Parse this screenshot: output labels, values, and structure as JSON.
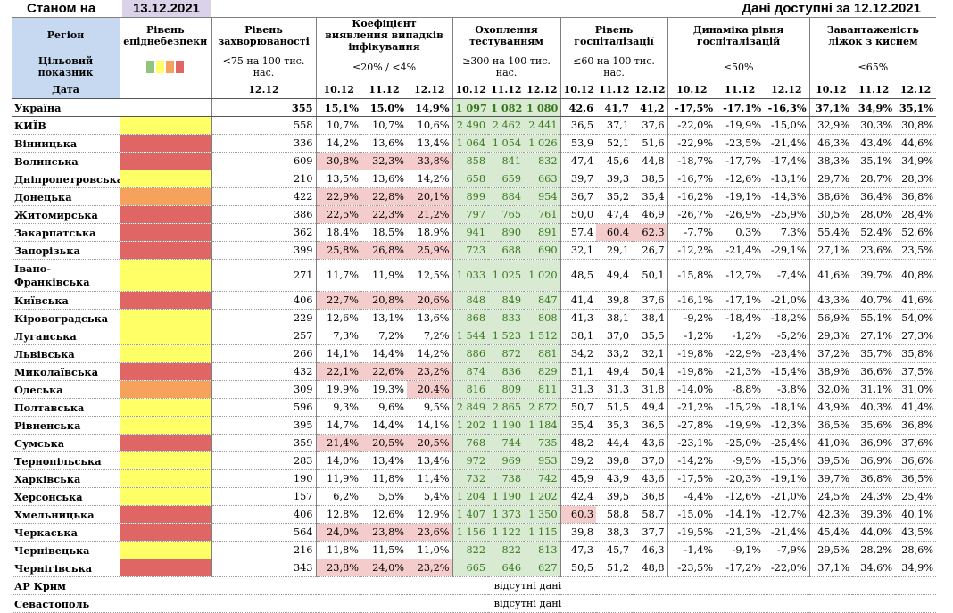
{
  "header": {
    "as_of_label": "Станом на",
    "as_of_date": "13.12.2021",
    "data_available": "Дані доступні за  12.12.2021"
  },
  "columns": {
    "region": "Регіон",
    "level": "Рівень епіднебезпеки",
    "incidence": "Рівень захворюваності",
    "detection": "Коефіцієнт виявлення випадків інфікування",
    "testing": "Охоплення тестуванням",
    "hosp": "Рівень госпіталізації",
    "dynamics": "Динаміка рівня госпіталізацій",
    "oxygen": "Завантаженість ліжок з киснем"
  },
  "targets": {
    "label": "Цільовий показник",
    "incidence": "<75 на 100 тис. нас.",
    "detection": "≤20% / <4%",
    "testing": "≥300 на 100 тис. нас.",
    "hosp": "≤60 на 100 тис. нас.",
    "dynamics": "≤50%",
    "oxygen": "≤65%"
  },
  "dates": {
    "label": "Дата",
    "incidence": "12.12",
    "triple": [
      "10.12",
      "11.12",
      "12.12"
    ]
  },
  "legend_colors": [
    "#93c47d",
    "#ffff66",
    "#f6a25c",
    "#e06666"
  ],
  "level_colors": {
    "yellow": "#ffff66",
    "orange": "#f6a25c",
    "red": "#e06666"
  },
  "ukraine": {
    "name": "Україна",
    "inc": "355",
    "det": [
      "15,1%",
      "15,0%",
      "14,9%"
    ],
    "test": [
      "1 097",
      "1 082",
      "1 080"
    ],
    "hosp": [
      "42,6",
      "41,7",
      "41,2"
    ],
    "dyn": [
      "-17,5%",
      "-17,1%",
      "-16,3%"
    ],
    "oxy": [
      "37,1%",
      "34,9%",
      "35,1%"
    ]
  },
  "rows": [
    {
      "name": "КИЇВ",
      "level": "yellow",
      "inc": "558",
      "det": [
        "10,7%",
        "10,7%",
        "10,6%"
      ],
      "test": [
        "2 490",
        "2 462",
        "2 441"
      ],
      "hosp": [
        "36,5",
        "37,1",
        "37,6"
      ],
      "dyn": [
        "-22,0%",
        "-19,9%",
        "-15,0%"
      ],
      "oxy": [
        "32,9%",
        "30,3%",
        "30,8%"
      ]
    },
    {
      "name": "Вінницька",
      "level": "red",
      "inc": "336",
      "det": [
        "14,2%",
        "13,6%",
        "13,4%"
      ],
      "test": [
        "1 064",
        "1 054",
        "1 026"
      ],
      "hosp": [
        "53,9",
        "52,1",
        "51,6"
      ],
      "dyn": [
        "-22,9%",
        "-23,5%",
        "-21,4%"
      ],
      "oxy": [
        "46,3%",
        "43,4%",
        "44,6%"
      ]
    },
    {
      "name": "Волинська",
      "level": "red",
      "inc": "609",
      "det": [
        "30,8%",
        "32,3%",
        "33,8%"
      ],
      "det_pink": [
        1,
        1,
        1
      ],
      "test": [
        "858",
        "841",
        "832"
      ],
      "hosp": [
        "47,4",
        "45,6",
        "44,8"
      ],
      "dyn": [
        "-18,7%",
        "-17,7%",
        "-17,4%"
      ],
      "oxy": [
        "38,3%",
        "35,1%",
        "34,9%"
      ]
    },
    {
      "name": "Дніпропетровська",
      "level": "yellow",
      "inc": "210",
      "det": [
        "13,5%",
        "13,6%",
        "14,2%"
      ],
      "test": [
        "658",
        "659",
        "663"
      ],
      "hosp": [
        "39,7",
        "39,3",
        "38,5"
      ],
      "dyn": [
        "-16,7%",
        "-12,6%",
        "-13,1%"
      ],
      "oxy": [
        "29,7%",
        "28,7%",
        "28,3%"
      ]
    },
    {
      "name": "Донецька",
      "level": "orange",
      "inc": "422",
      "det": [
        "22,9%",
        "22,8%",
        "20,1%"
      ],
      "det_pink": [
        1,
        1,
        1
      ],
      "test": [
        "899",
        "884",
        "954"
      ],
      "hosp": [
        "36,7",
        "35,2",
        "35,4"
      ],
      "dyn": [
        "-16,2%",
        "-19,1%",
        "-14,3%"
      ],
      "oxy": [
        "38,6%",
        "36,4%",
        "36,8%"
      ]
    },
    {
      "name": "Житомирська",
      "level": "red",
      "inc": "386",
      "det": [
        "22,5%",
        "22,3%",
        "21,2%"
      ],
      "det_pink": [
        1,
        1,
        1
      ],
      "test": [
        "797",
        "765",
        "761"
      ],
      "hosp": [
        "50,0",
        "47,4",
        "46,9"
      ],
      "dyn": [
        "-26,7%",
        "-26,9%",
        "-25,9%"
      ],
      "oxy": [
        "30,5%",
        "28,0%",
        "28,4%"
      ]
    },
    {
      "name": "Закарпатська",
      "level": "red",
      "inc": "362",
      "det": [
        "18,4%",
        "18,5%",
        "18,9%"
      ],
      "test": [
        "941",
        "890",
        "891"
      ],
      "hosp": [
        "57,4",
        "60,4",
        "62,3"
      ],
      "hosp_pink": [
        0,
        1,
        1
      ],
      "dyn": [
        "-7,7%",
        "0,3%",
        "7,3%"
      ],
      "oxy": [
        "55,4%",
        "52,4%",
        "52,6%"
      ]
    },
    {
      "name": "Запорізька",
      "level": "red",
      "inc": "399",
      "det": [
        "25,8%",
        "26,8%",
        "25,9%"
      ],
      "det_pink": [
        1,
        1,
        1
      ],
      "test": [
        "723",
        "688",
        "690"
      ],
      "hosp": [
        "32,1",
        "29,1",
        "26,7"
      ],
      "dyn": [
        "-12,2%",
        "-21,4%",
        "-29,1%"
      ],
      "oxy": [
        "27,1%",
        "23,6%",
        "23,5%"
      ]
    },
    {
      "name": "Івано-Франківська",
      "tall": true,
      "level": "yellow",
      "inc": "271",
      "det": [
        "11,7%",
        "11,9%",
        "12,5%"
      ],
      "test": [
        "1 033",
        "1 025",
        "1 020"
      ],
      "hosp": [
        "48,5",
        "49,4",
        "50,1"
      ],
      "dyn": [
        "-15,8%",
        "-12,7%",
        "-7,4%"
      ],
      "oxy": [
        "41,6%",
        "39,7%",
        "40,8%"
      ]
    },
    {
      "name": "Київська",
      "level": "red",
      "inc": "406",
      "det": [
        "22,7%",
        "20,8%",
        "20,6%"
      ],
      "det_pink": [
        1,
        1,
        1
      ],
      "test": [
        "848",
        "849",
        "847"
      ],
      "hosp": [
        "41,4",
        "39,8",
        "37,6"
      ],
      "dyn": [
        "-16,1%",
        "-17,1%",
        "-21,0%"
      ],
      "oxy": [
        "43,3%",
        "40,7%",
        "41,6%"
      ]
    },
    {
      "name": "Кіровоградська",
      "level": "yellow",
      "inc": "229",
      "det": [
        "12,6%",
        "13,1%",
        "13,6%"
      ],
      "test": [
        "868",
        "833",
        "808"
      ],
      "hosp": [
        "41,3",
        "38,1",
        "38,4"
      ],
      "dyn": [
        "-9,2%",
        "-18,4%",
        "-18,2%"
      ],
      "oxy": [
        "56,9%",
        "55,1%",
        "54,0%"
      ]
    },
    {
      "name": "Луганська",
      "level": "yellow",
      "inc": "257",
      "det": [
        "7,3%",
        "7,2%",
        "7,2%"
      ],
      "test": [
        "1 544",
        "1 523",
        "1 512"
      ],
      "hosp": [
        "38,1",
        "37,0",
        "35,5"
      ],
      "dyn": [
        "-1,2%",
        "-1,2%",
        "-5,2%"
      ],
      "oxy": [
        "29,3%",
        "27,1%",
        "27,3%"
      ]
    },
    {
      "name": "Львівська",
      "level": "yellow",
      "inc": "266",
      "det": [
        "14,1%",
        "14,4%",
        "14,2%"
      ],
      "test": [
        "886",
        "872",
        "881"
      ],
      "hosp": [
        "34,2",
        "33,2",
        "32,1"
      ],
      "dyn": [
        "-19,8%",
        "-22,9%",
        "-23,4%"
      ],
      "oxy": [
        "37,2%",
        "35,7%",
        "35,8%"
      ]
    },
    {
      "name": "Миколаївська",
      "level": "red",
      "inc": "432",
      "det": [
        "22,1%",
        "22,6%",
        "23,2%"
      ],
      "det_pink": [
        1,
        1,
        1
      ],
      "test": [
        "874",
        "836",
        "829"
      ],
      "hosp": [
        "51,1",
        "49,4",
        "50,4"
      ],
      "dyn": [
        "-19,8%",
        "-21,3%",
        "-15,4%"
      ],
      "oxy": [
        "38,9%",
        "36,6%",
        "37,5%"
      ]
    },
    {
      "name": "Одеська",
      "level": "orange",
      "inc": "309",
      "det": [
        "19,9%",
        "19,3%",
        "20,4%"
      ],
      "det_pink": [
        0,
        0,
        1
      ],
      "test": [
        "816",
        "809",
        "811"
      ],
      "hosp": [
        "31,3",
        "31,3",
        "31,8"
      ],
      "dyn": [
        "-14,0%",
        "-8,8%",
        "-3,8%"
      ],
      "oxy": [
        "32,0%",
        "31,1%",
        "31,0%"
      ]
    },
    {
      "name": "Полтавська",
      "level": "yellow",
      "inc": "596",
      "det": [
        "9,3%",
        "9,6%",
        "9,5%"
      ],
      "test": [
        "2 849",
        "2 865",
        "2 872"
      ],
      "hosp": [
        "50,7",
        "51,5",
        "49,4"
      ],
      "dyn": [
        "-21,2%",
        "-15,2%",
        "-18,1%"
      ],
      "oxy": [
        "43,9%",
        "40,3%",
        "41,4%"
      ]
    },
    {
      "name": "Рівненська",
      "level": "yellow",
      "inc": "395",
      "det": [
        "14,7%",
        "14,4%",
        "14,1%"
      ],
      "test": [
        "1 202",
        "1 190",
        "1 184"
      ],
      "hosp": [
        "35,4",
        "35,3",
        "36,5"
      ],
      "dyn": [
        "-27,8%",
        "-19,9%",
        "-12,3%"
      ],
      "oxy": [
        "36,5%",
        "35,6%",
        "36,8%"
      ]
    },
    {
      "name": "Сумська",
      "level": "red",
      "inc": "359",
      "det": [
        "21,4%",
        "20,5%",
        "20,5%"
      ],
      "det_pink": [
        1,
        1,
        1
      ],
      "test": [
        "768",
        "744",
        "735"
      ],
      "hosp": [
        "48,2",
        "44,4",
        "43,6"
      ],
      "dyn": [
        "-23,1%",
        "-25,0%",
        "-25,4%"
      ],
      "oxy": [
        "41,0%",
        "36,9%",
        "37,6%"
      ]
    },
    {
      "name": "Тернопільська",
      "level": "yellow",
      "inc": "283",
      "det": [
        "14,0%",
        "13,4%",
        "13,4%"
      ],
      "test": [
        "972",
        "969",
        "953"
      ],
      "hosp": [
        "39,2",
        "39,8",
        "37,0"
      ],
      "dyn": [
        "-14,2%",
        "-9,5%",
        "-15,3%"
      ],
      "oxy": [
        "39,5%",
        "36,9%",
        "36,6%"
      ]
    },
    {
      "name": "Харківська",
      "level": "yellow",
      "inc": "190",
      "det": [
        "11,9%",
        "11,8%",
        "11,4%"
      ],
      "test": [
        "732",
        "738",
        "742"
      ],
      "hosp": [
        "45,9",
        "43,9",
        "43,6"
      ],
      "dyn": [
        "-17,5%",
        "-20,3%",
        "-19,1%"
      ],
      "oxy": [
        "39,7%",
        "36,8%",
        "36,5%"
      ]
    },
    {
      "name": "Херсонська",
      "level": "yellow",
      "inc": "157",
      "det": [
        "6,2%",
        "5,5%",
        "5,4%"
      ],
      "test": [
        "1 204",
        "1 190",
        "1 202"
      ],
      "hosp": [
        "42,4",
        "39,5",
        "36,8"
      ],
      "dyn": [
        "-4,4%",
        "-12,6%",
        "-21,0%"
      ],
      "oxy": [
        "24,5%",
        "24,3%",
        "25,4%"
      ]
    },
    {
      "name": "Хмельницька",
      "level": "red",
      "inc": "406",
      "det": [
        "12,8%",
        "12,6%",
        "12,9%"
      ],
      "test": [
        "1 407",
        "1 373",
        "1 350"
      ],
      "hosp": [
        "60,3",
        "58,8",
        "58,7"
      ],
      "hosp_pink": [
        1,
        0,
        0
      ],
      "dyn": [
        "-15,0%",
        "-14,1%",
        "-12,7%"
      ],
      "oxy": [
        "42,3%",
        "39,3%",
        "40,1%"
      ]
    },
    {
      "name": "Черкаська",
      "level": "red",
      "inc": "564",
      "det": [
        "24,0%",
        "23,8%",
        "23,6%"
      ],
      "det_pink": [
        1,
        1,
        1
      ],
      "test": [
        "1 156",
        "1 122",
        "1 115"
      ],
      "hosp": [
        "39,8",
        "38,3",
        "37,7"
      ],
      "dyn": [
        "-19,5%",
        "-21,3%",
        "-21,4%"
      ],
      "oxy": [
        "45,4%",
        "44,0%",
        "43,5%"
      ]
    },
    {
      "name": "Чернівецька",
      "level": "yellow",
      "inc": "216",
      "det": [
        "11,8%",
        "11,5%",
        "11,0%"
      ],
      "test": [
        "822",
        "822",
        "813"
      ],
      "hosp": [
        "47,3",
        "45,7",
        "46,3"
      ],
      "dyn": [
        "-1,4%",
        "-9,1%",
        "-7,9%"
      ],
      "oxy": [
        "29,5%",
        "28,2%",
        "28,6%"
      ]
    },
    {
      "name": "Чернігівська",
      "level": "red",
      "inc": "343",
      "det": [
        "23,8%",
        "24,0%",
        "23,2%"
      ],
      "det_pink": [
        1,
        1,
        1
      ],
      "test": [
        "665",
        "646",
        "627"
      ],
      "hosp": [
        "50,5",
        "51,2",
        "48,8"
      ],
      "dyn": [
        "-23,5%",
        "-17,2%",
        "-22,0%"
      ],
      "oxy": [
        "37,1%",
        "34,6%",
        "34,9%"
      ]
    }
  ],
  "no_data_rows": [
    {
      "name": "АР Крим",
      "message": "відсутні дані"
    },
    {
      "name": "Севастополь",
      "message": "відсутні дані"
    }
  ]
}
